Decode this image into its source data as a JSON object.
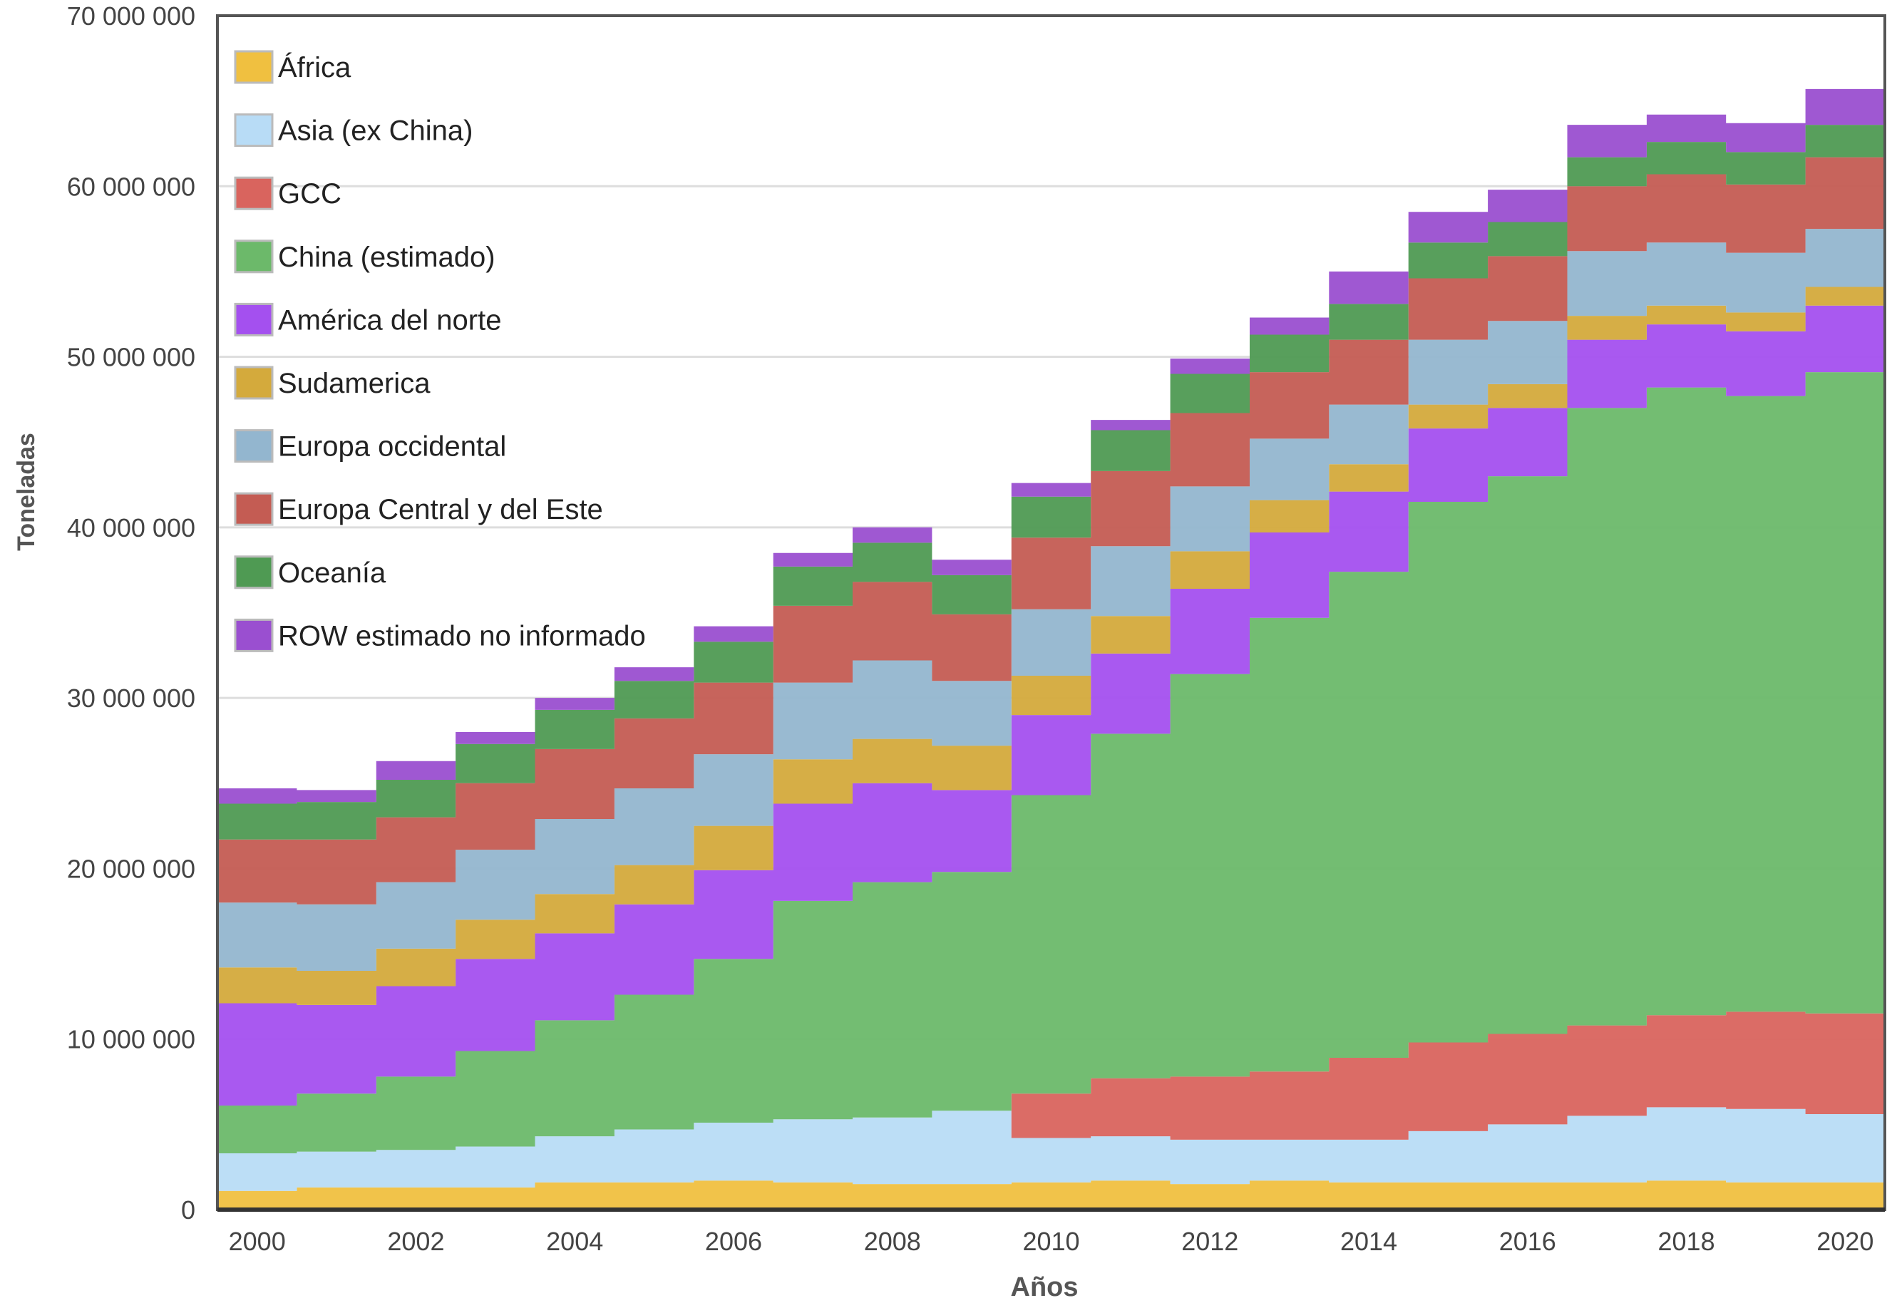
{
  "chart_data": {
    "type": "area",
    "title": "",
    "xlabel": "Años",
    "ylabel": "Toneladas",
    "x_ticks": [
      "2000",
      "2002",
      "2004",
      "2006",
      "2008",
      "2010",
      "2012",
      "2014",
      "2016",
      "2018",
      "2020"
    ],
    "y_ticks": [
      "0",
      "10 000 000",
      "20 000 000",
      "30 000 000",
      "40 000 000",
      "50 000 000",
      "60 000 000",
      "70 000 000"
    ],
    "ylim": [
      0,
      70000000
    ],
    "xlim": [
      1999.5,
      2020.5
    ],
    "stacked": true,
    "step": true,
    "grid": true,
    "legend_position": "top-left",
    "x": [
      2000,
      2001,
      2002,
      2003,
      2004,
      2005,
      2006,
      2007,
      2008,
      2009,
      2010,
      2011,
      2012,
      2013,
      2014,
      2015,
      2016,
      2017,
      2018,
      2019,
      2020
    ],
    "series": [
      {
        "name": "África",
        "color": "#f0c040",
        "values": [
          1100000,
          1300000,
          1300000,
          1300000,
          1600000,
          1600000,
          1700000,
          1600000,
          1500000,
          1500000,
          1600000,
          1700000,
          1500000,
          1700000,
          1600000,
          1600000,
          1600000,
          1600000,
          1700000,
          1600000,
          1600000
        ]
      },
      {
        "name": "Asia (ex China)",
        "color": "#b8dcf6",
        "values": [
          2200000,
          2100000,
          2200000,
          2400000,
          2700000,
          3100000,
          3400000,
          3700000,
          3900000,
          4300000,
          2600000,
          2600000,
          2600000,
          2400000,
          2500000,
          3000000,
          3400000,
          3900000,
          4300000,
          4300000,
          4000000
        ]
      },
      {
        "name": "GCC",
        "color": "#d9645e",
        "values": [
          0,
          0,
          0,
          0,
          0,
          0,
          0,
          0,
          0,
          0,
          2600000,
          3400000,
          3700000,
          4000000,
          4800000,
          5200000,
          5300000,
          5300000,
          5400000,
          5700000,
          5900000
        ]
      },
      {
        "name": "China (estimado)",
        "color": "#6cb96a",
        "values": [
          2800000,
          3400000,
          4300000,
          5600000,
          6800000,
          7900000,
          9600000,
          12800000,
          13800000,
          14000000,
          17500000,
          20200000,
          23600000,
          26600000,
          28500000,
          31700000,
          32700000,
          36200000,
          36800000,
          36100000,
          37600000
        ]
      },
      {
        "name": "América del norte",
        "color": "#a450ef",
        "values": [
          6000000,
          5200000,
          5300000,
          5400000,
          5100000,
          5300000,
          5200000,
          5700000,
          5800000,
          4800000,
          4700000,
          4700000,
          5000000,
          5000000,
          4700000,
          4300000,
          4000000,
          4000000,
          3700000,
          3800000,
          3900000
        ]
      },
      {
        "name": "Sudamerica",
        "color": "#d4aa3c",
        "values": [
          2100000,
          2000000,
          2200000,
          2300000,
          2300000,
          2300000,
          2600000,
          2600000,
          2600000,
          2600000,
          2300000,
          2200000,
          2200000,
          1900000,
          1600000,
          1400000,
          1400000,
          1400000,
          1100000,
          1100000,
          1100000
        ]
      },
      {
        "name": "Europa occidental",
        "color": "#93b6cf",
        "values": [
          3800000,
          3900000,
          3900000,
          4100000,
          4400000,
          4500000,
          4200000,
          4500000,
          4600000,
          3800000,
          3900000,
          4100000,
          3800000,
          3600000,
          3500000,
          3800000,
          3700000,
          3800000,
          3700000,
          3500000,
          3400000
        ]
      },
      {
        "name": "Europa Central y del Este",
        "color": "#c45c53",
        "values": [
          3700000,
          3800000,
          3800000,
          3900000,
          4100000,
          4100000,
          4200000,
          4500000,
          4600000,
          3900000,
          4200000,
          4400000,
          4300000,
          3900000,
          3800000,
          3600000,
          3800000,
          3800000,
          4000000,
          4000000,
          4200000
        ]
      },
      {
        "name": "Oceanía",
        "color": "#4f9a53",
        "values": [
          2100000,
          2200000,
          2200000,
          2300000,
          2300000,
          2200000,
          2400000,
          2300000,
          2300000,
          2300000,
          2400000,
          2400000,
          2300000,
          2200000,
          2100000,
          2100000,
          2000000,
          1700000,
          1900000,
          1900000,
          1900000
        ]
      },
      {
        "name": "ROW estimado no informado",
        "color": "#9a4fd0",
        "values": [
          900000,
          700000,
          1100000,
          700000,
          700000,
          800000,
          900000,
          800000,
          900000,
          900000,
          800000,
          600000,
          900000,
          1000000,
          1900000,
          1800000,
          1900000,
          1900000,
          1600000,
          1700000,
          2100000
        ]
      }
    ]
  }
}
